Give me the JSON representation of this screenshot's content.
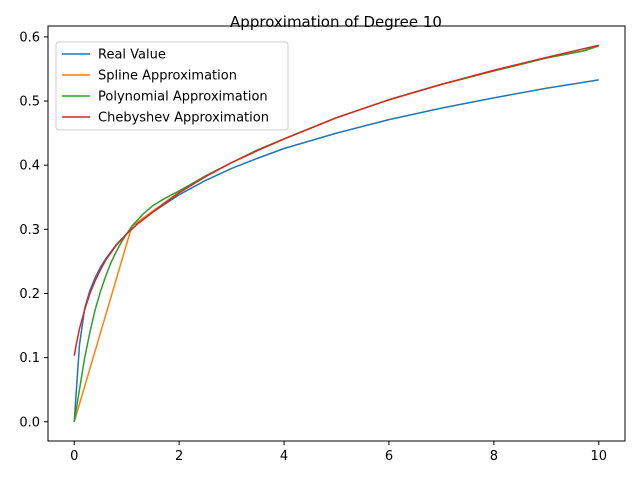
{
  "chart_data": {
    "type": "line",
    "title": "Approximation of Degree 10",
    "xlabel": "",
    "ylabel": "",
    "xlim": [
      -0.5,
      10.5
    ],
    "ylim": [
      -0.03,
      0.617
    ],
    "x_ticks": [
      0,
      2,
      4,
      6,
      8,
      10
    ],
    "x_tick_labels": [
      "0",
      "2",
      "4",
      "6",
      "8",
      "10"
    ],
    "y_ticks": [
      0.0,
      0.1,
      0.2,
      0.3,
      0.4,
      0.5,
      0.6
    ],
    "y_tick_labels": [
      "0.0",
      "0.1",
      "0.2",
      "0.3",
      "0.4",
      "0.5",
      "0.6"
    ],
    "grid": false,
    "legend_position": "top-left",
    "series": [
      {
        "name": "Real Value",
        "color": "#1f77b4",
        "x": [
          0,
          0.05,
          0.1,
          0.2,
          0.3,
          0.4,
          0.5,
          0.6,
          0.8,
          1.0,
          1.2,
          1.5,
          2.0,
          2.5,
          3.0,
          3.5,
          4.0,
          5.0,
          6.0,
          7.0,
          8.0,
          9.0,
          10.0
        ],
        "y": [
          0.0,
          0.06,
          0.12,
          0.177,
          0.205,
          0.225,
          0.241,
          0.254,
          0.276,
          0.293,
          0.308,
          0.327,
          0.354,
          0.376,
          0.395,
          0.411,
          0.426,
          0.45,
          0.471,
          0.489,
          0.505,
          0.52,
          0.533
        ]
      },
      {
        "name": "Spline Approximation",
        "color": "#ff7f0e",
        "x": [
          0,
          1.1,
          2.0,
          2.5,
          3.0,
          3.5,
          4.0,
          5.0,
          6.0,
          7.0,
          8.0,
          9.0,
          9.7,
          10.0
        ],
        "y": [
          0.0,
          0.305,
          0.358,
          0.383,
          0.404,
          0.424,
          0.441,
          0.474,
          0.502,
          0.526,
          0.547,
          0.567,
          0.578,
          0.586
        ]
      },
      {
        "name": "Polynomial Approximation",
        "color": "#2ca02c",
        "x": [
          0,
          0.1,
          0.2,
          0.3,
          0.4,
          0.5,
          0.6,
          0.7,
          0.8,
          0.9,
          1.0,
          1.1,
          1.3,
          1.5,
          1.7,
          2.0,
          2.5,
          3.0,
          3.5,
          4.0,
          5.0,
          6.0,
          7.0,
          8.0,
          9.0,
          9.7,
          10.0
        ],
        "y": [
          0.0,
          0.05,
          0.1,
          0.14,
          0.175,
          0.203,
          0.227,
          0.248,
          0.265,
          0.28,
          0.293,
          0.305,
          0.323,
          0.337,
          0.347,
          0.36,
          0.383,
          0.404,
          0.424,
          0.441,
          0.474,
          0.502,
          0.526,
          0.547,
          0.567,
          0.578,
          0.586
        ]
      },
      {
        "name": "Chebyshev Approximation",
        "color": "#d62728",
        "x": [
          0,
          0.05,
          0.1,
          0.2,
          0.3,
          0.4,
          0.5,
          0.6,
          0.8,
          1.0,
          1.2,
          1.5,
          2.0,
          2.5,
          3.0,
          3.5,
          4.0,
          5.0,
          6.0,
          7.0,
          8.0,
          9.0,
          10.0
        ],
        "y": [
          0.103,
          0.125,
          0.145,
          0.175,
          0.2,
          0.22,
          0.237,
          0.252,
          0.275,
          0.293,
          0.308,
          0.327,
          0.357,
          0.382,
          0.404,
          0.423,
          0.441,
          0.474,
          0.502,
          0.526,
          0.548,
          0.568,
          0.587
        ]
      }
    ]
  }
}
